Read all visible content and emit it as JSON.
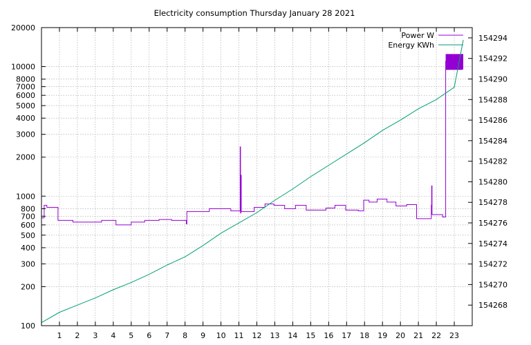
{
  "chart_data": {
    "type": "line",
    "title": "Electricity consumption Thursday January 28 2021",
    "xlabel": "",
    "x_ticks": [
      "1",
      "2",
      "3",
      "4",
      "5",
      "6",
      "7",
      "8",
      "9",
      "10",
      "11",
      "12",
      "13",
      "14",
      "15",
      "16",
      "17",
      "18",
      "19",
      "20",
      "21",
      "22",
      "23"
    ],
    "xlim": [
      0,
      24
    ],
    "grid": true,
    "legend_position": "top-right",
    "y_left": {
      "label": "",
      "scale": "log",
      "ylim": [
        100,
        20000
      ],
      "ticks": [
        "100",
        "200",
        "300",
        "400",
        "500",
        "600",
        "700",
        "800",
        "1000",
        "2000",
        "3000",
        "4000",
        "5000",
        "6000",
        "7000",
        "8000",
        "10000",
        "20000"
      ]
    },
    "y_right": {
      "label": "",
      "scale": "linear",
      "ylim": [
        154266,
        154295
      ],
      "ticks": [
        "154268",
        "154270",
        "154272",
        "154274",
        "154276",
        "154278",
        "154280",
        "154282",
        "154284",
        "154286",
        "154288",
        "154290",
        "154292",
        "154294"
      ]
    },
    "series": [
      {
        "name": "Power W",
        "axis": "left",
        "color": "#9400d3",
        "step": true,
        "points": [
          [
            0,
            680
          ],
          [
            0.15,
            850
          ],
          [
            0.3,
            820
          ],
          [
            0.9,
            820
          ],
          [
            0.92,
            650
          ],
          [
            1.7,
            650
          ],
          [
            1.75,
            630
          ],
          [
            3.3,
            630
          ],
          [
            3.35,
            650
          ],
          [
            4.1,
            650
          ],
          [
            4.15,
            600
          ],
          [
            4.95,
            600
          ],
          [
            5.0,
            630
          ],
          [
            5.7,
            630
          ],
          [
            5.75,
            650
          ],
          [
            6.5,
            650
          ],
          [
            6.55,
            660
          ],
          [
            7.2,
            660
          ],
          [
            7.25,
            650
          ],
          [
            8.05,
            650
          ],
          [
            8.07,
            610
          ],
          [
            8.1,
            760
          ],
          [
            9.3,
            760
          ],
          [
            9.35,
            800
          ],
          [
            10.5,
            800
          ],
          [
            10.55,
            770
          ],
          [
            11.05,
            770
          ],
          [
            11.07,
            2400
          ],
          [
            11.09,
            740
          ],
          [
            11.11,
            1450
          ],
          [
            11.13,
            760
          ],
          [
            11.8,
            760
          ],
          [
            11.85,
            820
          ],
          [
            12.4,
            820
          ],
          [
            12.45,
            870
          ],
          [
            12.9,
            870
          ],
          [
            12.95,
            850
          ],
          [
            13.5,
            850
          ],
          [
            13.55,
            800
          ],
          [
            14.1,
            800
          ],
          [
            14.15,
            850
          ],
          [
            14.7,
            850
          ],
          [
            14.75,
            780
          ],
          [
            15.8,
            780
          ],
          [
            15.85,
            810
          ],
          [
            16.3,
            810
          ],
          [
            16.35,
            850
          ],
          [
            16.9,
            850
          ],
          [
            16.95,
            780
          ],
          [
            17.6,
            780
          ],
          [
            17.65,
            770
          ],
          [
            17.9,
            770
          ],
          [
            17.95,
            930
          ],
          [
            18.2,
            930
          ],
          [
            18.25,
            900
          ],
          [
            18.65,
            900
          ],
          [
            18.7,
            950
          ],
          [
            19.2,
            950
          ],
          [
            19.25,
            900
          ],
          [
            19.7,
            900
          ],
          [
            19.75,
            840
          ],
          [
            20.3,
            840
          ],
          [
            20.35,
            860
          ],
          [
            20.85,
            860
          ],
          [
            20.9,
            670
          ],
          [
            21.7,
            670
          ],
          [
            21.72,
            850
          ],
          [
            21.74,
            1200
          ],
          [
            21.76,
            720
          ],
          [
            22.3,
            720
          ],
          [
            22.35,
            690
          ],
          [
            22.5,
            690
          ],
          [
            22.52,
            11000
          ],
          [
            22.55,
            9500
          ],
          [
            23.4,
            9500
          ],
          [
            23.42,
            11000
          ],
          [
            23.44,
            12500
          ]
        ]
      },
      {
        "name": "Energy KWh",
        "axis": "right",
        "color": "#009e73",
        "points": [
          [
            0,
            154266.3
          ],
          [
            1,
            154267.3
          ],
          [
            2,
            154268.0
          ],
          [
            3,
            154268.7
          ],
          [
            4,
            154269.5
          ],
          [
            5,
            154270.2
          ],
          [
            6,
            154271.0
          ],
          [
            7,
            154271.9
          ],
          [
            8,
            154272.7
          ],
          [
            9,
            154273.8
          ],
          [
            10,
            154275.0
          ],
          [
            11,
            154276.0
          ],
          [
            12,
            154277.0
          ],
          [
            13,
            154278.2
          ],
          [
            14,
            154279.3
          ],
          [
            15,
            154280.5
          ],
          [
            16,
            154281.6
          ],
          [
            17,
            154282.7
          ],
          [
            18,
            154283.8
          ],
          [
            19,
            154285.0
          ],
          [
            20,
            154286.0
          ],
          [
            21,
            154287.1
          ],
          [
            22,
            154288.0
          ],
          [
            22.5,
            154288.6
          ],
          [
            23,
            154289.2
          ],
          [
            23.5,
            154293.8
          ]
        ]
      }
    ],
    "annotations": [
      {
        "type": "filled-band",
        "series": "Power W",
        "x_from": 22.52,
        "x_to": 23.5,
        "y_from": 9500,
        "y_to": 12500
      }
    ]
  }
}
